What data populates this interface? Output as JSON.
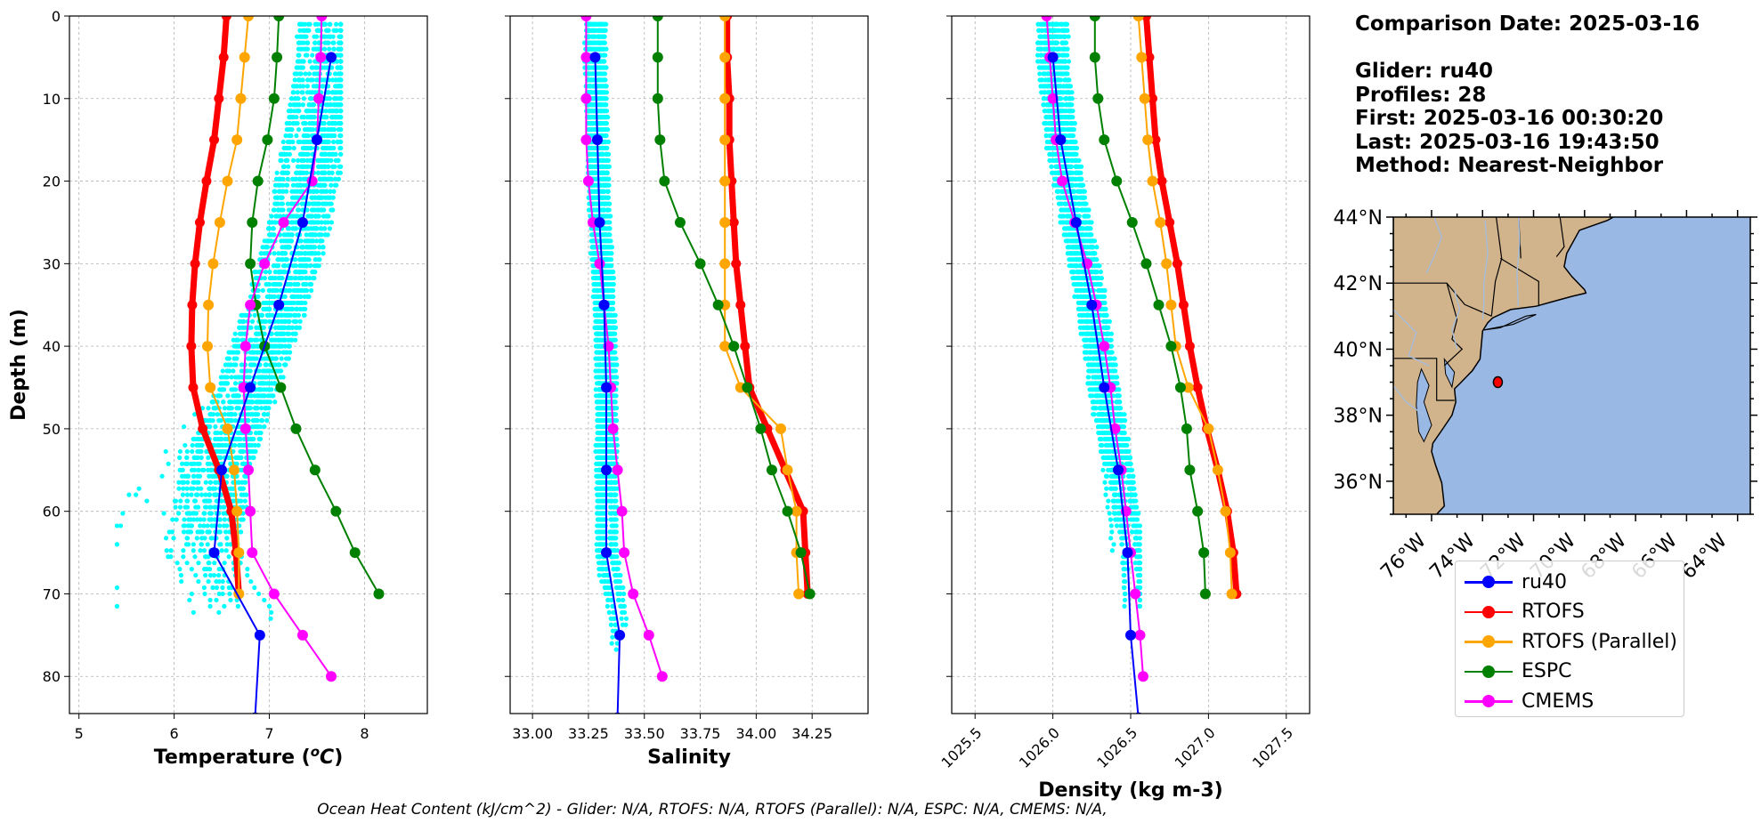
{
  "info": {
    "comparison_date": "Comparison Date: 2025-03-16",
    "glider": "Glider: ru40",
    "profiles": "Profiles: 28",
    "first": "First: 2025-03-16 00:30:20",
    "last": "Last: 2025-03-16 19:43:50",
    "method": "Method: Nearest-Neighbor"
  },
  "footer": "Ocean Heat Content (kJ/cm^2) - Glider: N/A,  RTOFS: N/A,  RTOFS (Parallel): N/A,  ESPC: N/A,  CMEMS: N/A,",
  "colors": {
    "ru40": "#0000ff",
    "RTOFS": "#ff0000",
    "RTOFS (Parallel)": "#ffa500",
    "ESPC": "#008000",
    "CMEMS": "#ff00ff",
    "glider_points": "#00ffff",
    "land": "#d2b48c",
    "ocean": "#9ab8e4"
  },
  "legend": [
    "ru40",
    "RTOFS",
    "RTOFS (Parallel)",
    "ESPC",
    "CMEMS"
  ],
  "chart_data": [
    {
      "type": "line",
      "xlabel": "Temperature (°C)",
      "ylabel": "Depth (m)",
      "xlim": [
        4.9,
        8.66
      ],
      "ylim": [
        84.5,
        0
      ],
      "xticks": [
        5,
        6,
        7,
        8
      ],
      "yticks": [
        0,
        10,
        20,
        30,
        40,
        50,
        60,
        70,
        80
      ],
      "grid": true,
      "glider_scatter_range": {
        "depth": [
          1,
          75
        ],
        "x": [
          5.4,
          7.75
        ]
      },
      "series": [
        {
          "name": "ru40",
          "depth": [
            5,
            15,
            25,
            35,
            45,
            55,
            65,
            75,
            85
          ],
          "x": [
            7.65,
            7.5,
            7.35,
            7.1,
            6.8,
            6.5,
            6.42,
            6.9,
            6.85
          ]
        },
        {
          "name": "RTOFS",
          "depth": [
            0,
            5,
            10,
            15,
            20,
            25,
            30,
            35,
            40,
            45,
            50,
            55,
            60,
            65,
            70
          ],
          "x": [
            6.55,
            6.52,
            6.47,
            6.42,
            6.34,
            6.27,
            6.22,
            6.19,
            6.18,
            6.2,
            6.3,
            6.47,
            6.6,
            6.65,
            6.68
          ]
        },
        {
          "name": "RTOFS (Parallel)",
          "depth": [
            0,
            5,
            10,
            15,
            20,
            25,
            30,
            35,
            40,
            45,
            50,
            55,
            60,
            65,
            70
          ],
          "x": [
            6.78,
            6.74,
            6.7,
            6.66,
            6.56,
            6.48,
            6.41,
            6.36,
            6.35,
            6.38,
            6.56,
            6.63,
            6.66,
            6.68,
            6.68
          ]
        },
        {
          "name": "ESPC",
          "depth": [
            0,
            5,
            10,
            15,
            20,
            25,
            30,
            35,
            40,
            45,
            50,
            55,
            60,
            65,
            70
          ],
          "x": [
            7.1,
            7.08,
            7.05,
            6.98,
            6.88,
            6.82,
            6.8,
            6.86,
            6.95,
            7.12,
            7.28,
            7.48,
            7.7,
            7.9,
            8.15
          ]
        },
        {
          "name": "CMEMS",
          "depth": [
            0,
            5,
            10,
            15,
            20,
            25,
            30,
            35,
            40,
            45,
            50,
            55,
            60,
            65,
            70,
            75,
            80
          ],
          "x": [
            7.55,
            7.54,
            7.52,
            7.5,
            7.45,
            7.15,
            6.95,
            6.8,
            6.75,
            6.73,
            6.75,
            6.78,
            6.8,
            6.82,
            7.05,
            7.35,
            7.65
          ]
        }
      ]
    },
    {
      "type": "line",
      "xlabel": "Salinity",
      "ylabel": "",
      "xlim": [
        32.9,
        34.5
      ],
      "ylim": [
        84.5,
        0
      ],
      "xticks": [
        "33.00",
        "33.25",
        "33.50",
        "33.75",
        "34.00",
        "34.25"
      ],
      "grid": true,
      "glider_scatter_range": {
        "depth": [
          1,
          77
        ],
        "x": [
          33.13,
          33.45
        ]
      },
      "series": [
        {
          "name": "ru40",
          "depth": [
            5,
            15,
            25,
            35,
            45,
            55,
            65,
            75,
            85
          ],
          "x": [
            33.28,
            33.29,
            33.3,
            33.32,
            33.33,
            33.33,
            33.33,
            33.39,
            33.38
          ]
        },
        {
          "name": "RTOFS",
          "depth": [
            0,
            5,
            10,
            15,
            20,
            25,
            30,
            35,
            40,
            45,
            50,
            55,
            60,
            65,
            70
          ],
          "x": [
            33.87,
            33.87,
            33.88,
            33.88,
            33.89,
            33.9,
            33.91,
            33.93,
            33.95,
            33.97,
            34.05,
            34.13,
            34.21,
            34.22,
            34.23
          ]
        },
        {
          "name": "RTOFS (Parallel)",
          "depth": [
            0,
            5,
            10,
            15,
            20,
            25,
            30,
            35,
            40,
            45,
            50,
            55,
            60,
            65,
            70
          ],
          "x": [
            33.86,
            33.86,
            33.86,
            33.86,
            33.86,
            33.86,
            33.86,
            33.86,
            33.86,
            33.93,
            34.11,
            34.14,
            34.18,
            34.18,
            34.19
          ]
        },
        {
          "name": "ESPC",
          "depth": [
            0,
            5,
            10,
            15,
            20,
            25,
            30,
            35,
            40,
            45,
            50,
            55,
            60,
            65,
            70
          ],
          "x": [
            33.56,
            33.56,
            33.56,
            33.57,
            33.59,
            33.66,
            33.75,
            33.83,
            33.9,
            33.96,
            34.02,
            34.07,
            34.14,
            34.2,
            34.24
          ]
        },
        {
          "name": "CMEMS",
          "depth": [
            0,
            5,
            10,
            15,
            20,
            25,
            30,
            35,
            40,
            45,
            50,
            55,
            60,
            65,
            70,
            75,
            80
          ],
          "x": [
            33.24,
            33.24,
            33.24,
            33.24,
            33.25,
            33.27,
            33.3,
            33.32,
            33.34,
            33.35,
            33.36,
            33.38,
            33.4,
            33.41,
            33.45,
            33.52,
            33.58
          ]
        }
      ]
    },
    {
      "type": "line",
      "xlabel": "Density (kg m-3)",
      "ylabel": "",
      "xlim": [
        1025.35,
        1027.65
      ],
      "ylim": [
        84.5,
        0
      ],
      "xticks": [
        "1025.5",
        "1026.0",
        "1026.5",
        "1027.0",
        "1027.5"
      ],
      "grid": true,
      "glider_scatter_range": {
        "depth": [
          1,
          72
        ],
        "x": [
          1025.88,
          1026.56
        ]
      },
      "series": [
        {
          "name": "ru40",
          "depth": [
            5,
            15,
            25,
            35,
            45,
            55,
            65,
            75,
            85
          ],
          "x": [
            1026.0,
            1026.05,
            1026.15,
            1026.25,
            1026.33,
            1026.42,
            1026.48,
            1026.5,
            1026.55
          ]
        },
        {
          "name": "RTOFS",
          "depth": [
            0,
            5,
            10,
            15,
            20,
            25,
            30,
            35,
            40,
            45,
            50,
            55,
            60,
            65,
            70
          ],
          "x": [
            1026.6,
            1026.62,
            1026.64,
            1026.66,
            1026.7,
            1026.75,
            1026.8,
            1026.84,
            1026.88,
            1026.93,
            1026.99,
            1027.06,
            1027.12,
            1027.16,
            1027.18
          ]
        },
        {
          "name": "RTOFS (Parallel)",
          "depth": [
            0,
            5,
            10,
            15,
            20,
            25,
            30,
            35,
            40,
            45,
            50,
            55,
            60,
            65,
            70
          ],
          "x": [
            1026.55,
            1026.57,
            1026.59,
            1026.61,
            1026.64,
            1026.69,
            1026.73,
            1026.76,
            1026.79,
            1026.87,
            1027.0,
            1027.06,
            1027.11,
            1027.14,
            1027.15
          ]
        },
        {
          "name": "ESPC",
          "depth": [
            0,
            5,
            10,
            15,
            20,
            25,
            30,
            35,
            40,
            45,
            50,
            55,
            60,
            65,
            70
          ],
          "x": [
            1026.27,
            1026.27,
            1026.29,
            1026.33,
            1026.41,
            1026.51,
            1026.6,
            1026.68,
            1026.76,
            1026.82,
            1026.86,
            1026.88,
            1026.93,
            1026.97,
            1026.98
          ]
        },
        {
          "name": "CMEMS",
          "depth": [
            0,
            5,
            10,
            15,
            20,
            25,
            30,
            35,
            40,
            45,
            50,
            55,
            60,
            65,
            70,
            75,
            80
          ],
          "x": [
            1025.96,
            1025.98,
            1026.0,
            1026.02,
            1026.06,
            1026.14,
            1026.22,
            1026.28,
            1026.33,
            1026.37,
            1026.4,
            1026.44,
            1026.47,
            1026.5,
            1026.53,
            1026.56,
            1026.58
          ]
        }
      ]
    }
  ],
  "map": {
    "lat_labels": [
      "44°N",
      "42°N",
      "40°N",
      "38°N",
      "36°N"
    ],
    "lon_labels": [
      "76°W",
      "74°W",
      "72°W",
      "70°W",
      "68°W",
      "66°W",
      "64°W"
    ],
    "lon_range": [
      -77.5,
      -63.5
    ],
    "lat_range": [
      35,
      44
    ],
    "glider_position": {
      "lon": -73.4,
      "lat": 39.0
    }
  }
}
